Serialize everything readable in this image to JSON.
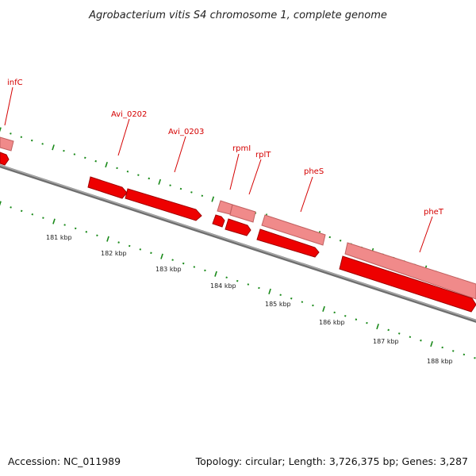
{
  "title": "Agrobacterium vitis S4 chromosome 1, complete genome",
  "footer": {
    "accession": "Accession: NC_011989",
    "summary": "Topology: circular; Length: 3,726,375 bp; Genes: 3,287"
  },
  "colors": {
    "forward_gene": "#f08a8a",
    "forward_gene_edge": "#c06060",
    "reverse_gene": "#ee0000",
    "reverse_gene_edge": "#a00000",
    "label": "#d40000",
    "backbone": "#8c8c8c",
    "ticks": "#1a8a1a"
  },
  "gene_labels": [
    {
      "name": "infC",
      "strand": "forward"
    },
    {
      "name": "Avi_0202",
      "strand": "reverse"
    },
    {
      "name": "Avi_0203",
      "strand": "reverse"
    },
    {
      "name": "rpmI",
      "strand": "forward"
    },
    {
      "name": "rplT",
      "strand": "forward"
    },
    {
      "name": "pheS",
      "strand": "forward"
    },
    {
      "name": "pheT",
      "strand": "forward"
    }
  ],
  "scale_labels": [
    "181 kbp",
    "182 kbp",
    "183 kbp",
    "184 kbp",
    "185 kbp",
    "186 kbp",
    "187 kbp",
    "188 kbp"
  ]
}
